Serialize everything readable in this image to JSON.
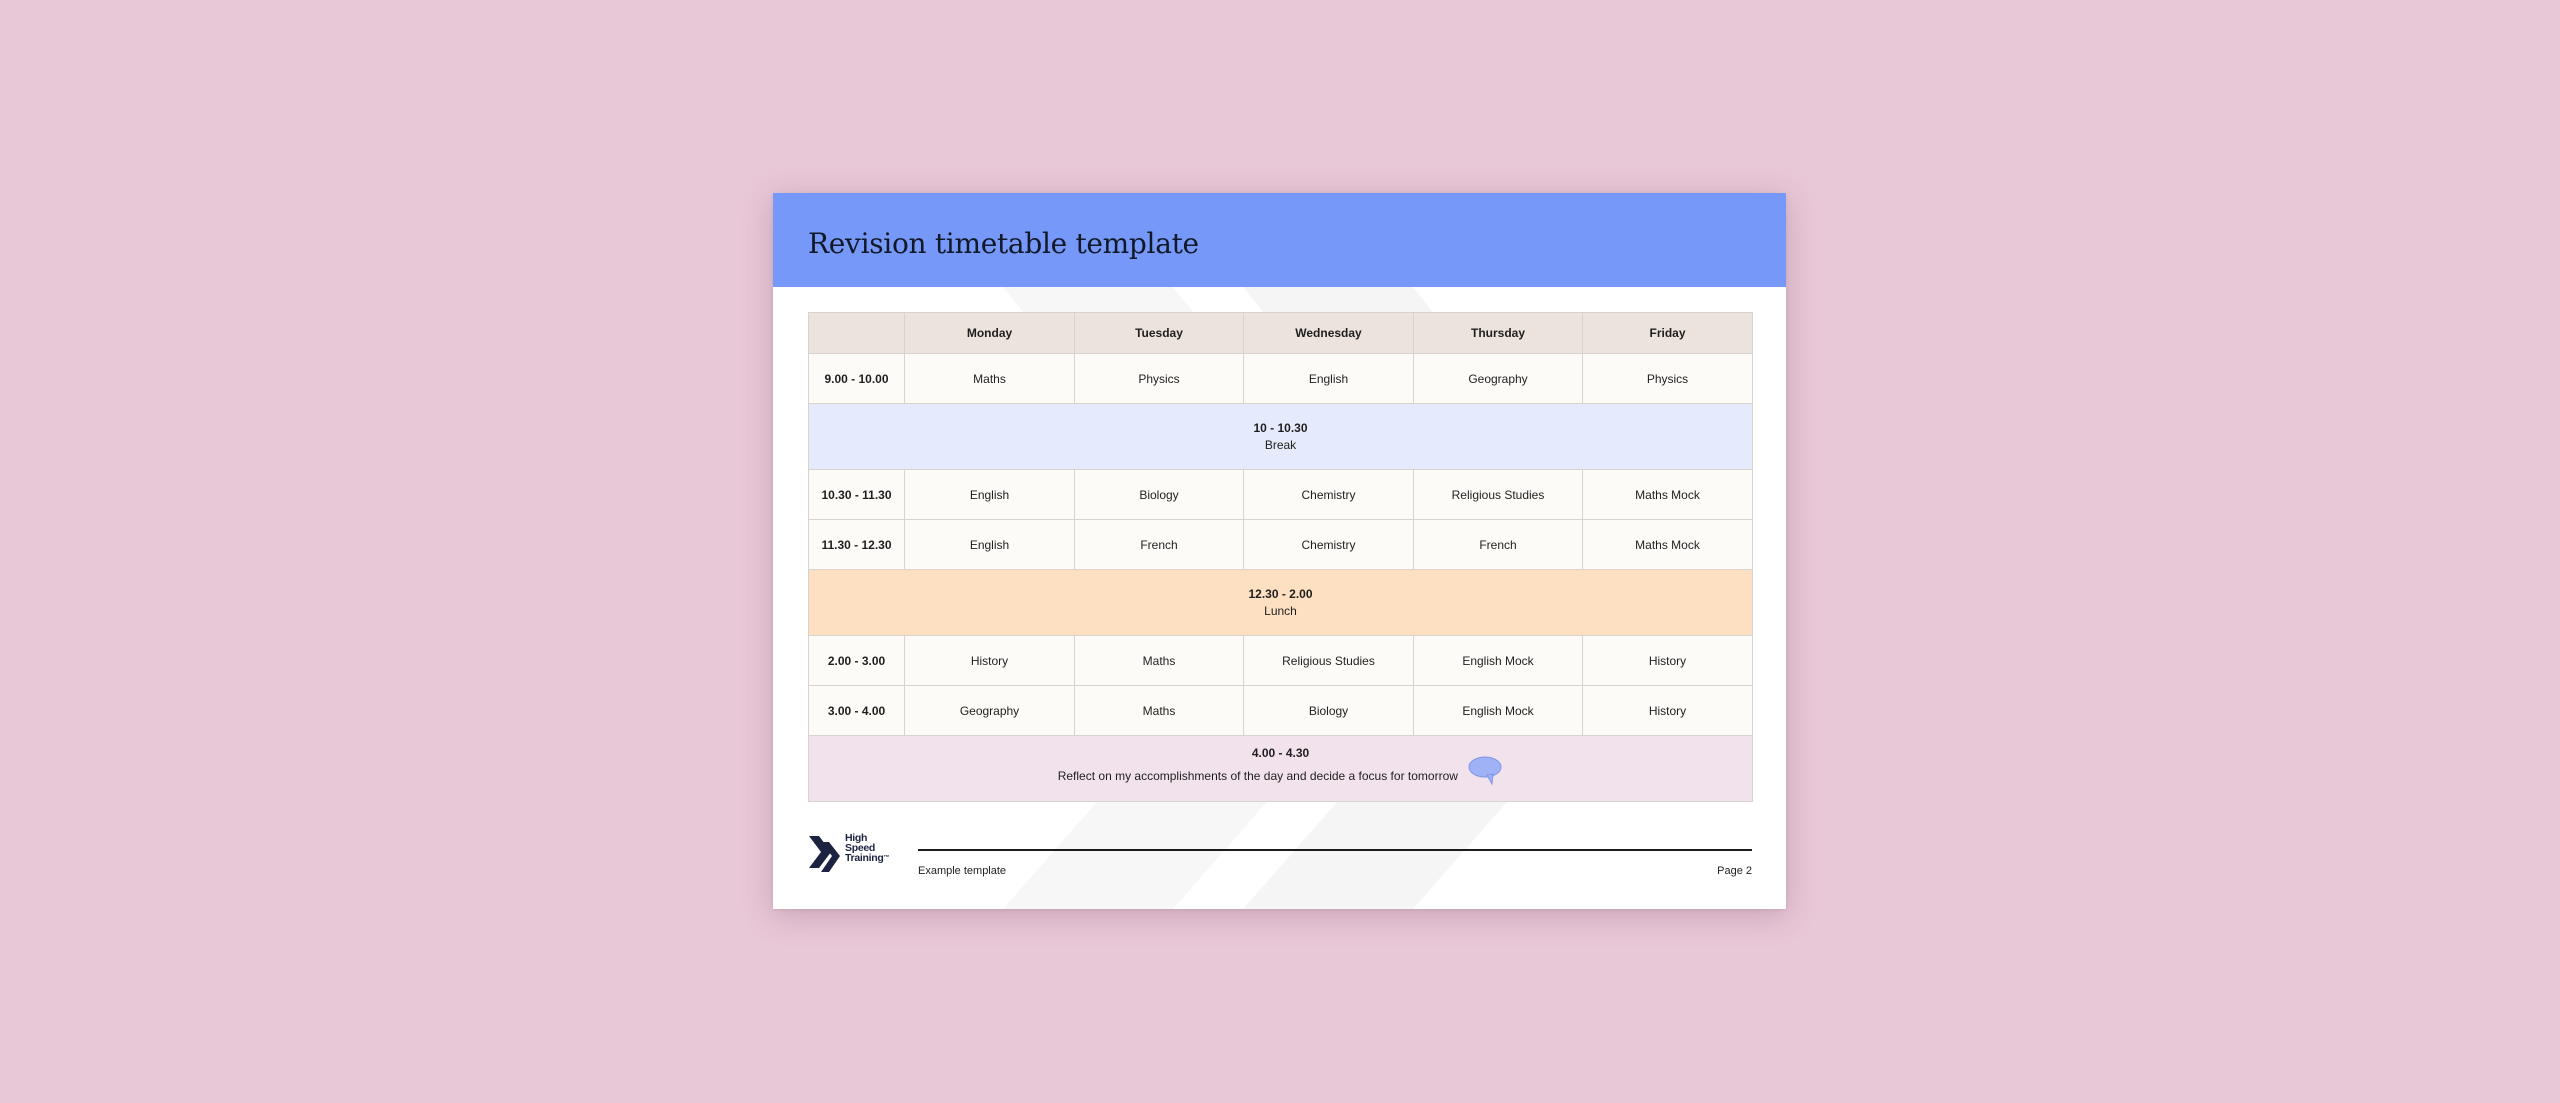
{
  "document": {
    "title": "Revision timetable template",
    "colors": {
      "background": "#e8c7d7",
      "header": "#7698f8",
      "table_header": "#ece3dc",
      "break": "#e5ebfd",
      "lunch": "#fde0c2",
      "reflect": "#f1e2ec"
    }
  },
  "timetable": {
    "days": [
      "Monday",
      "Tuesday",
      "Wednesday",
      "Thursday",
      "Friday"
    ],
    "rows": [
      {
        "time": "9.00 - 10.00",
        "subjects": [
          "Maths",
          "Physics",
          "English",
          "Geography",
          "Physics"
        ]
      },
      {
        "time": "10.30 - 11.30",
        "subjects": [
          "English",
          "Biology",
          "Chemistry",
          "Religious Studies",
          "Maths Mock"
        ]
      },
      {
        "time": "11.30 - 12.30",
        "subjects": [
          "English",
          "French",
          "Chemistry",
          "French",
          "Maths Mock"
        ]
      },
      {
        "time": "2.00 - 3.00",
        "subjects": [
          "History",
          "Maths",
          "Religious Studies",
          "English Mock",
          "History"
        ]
      },
      {
        "time": "3.00 - 4.00",
        "subjects": [
          "Geography",
          "Maths",
          "Biology",
          "English Mock",
          "History"
        ]
      }
    ],
    "breaks": {
      "morning": {
        "time": "10 - 10.30",
        "label": "Break"
      },
      "lunch": {
        "time": "12.30 - 2.00",
        "label": "Lunch"
      },
      "reflect": {
        "time": "4.00 - 4.30",
        "label": "Reflect on my accomplishments of the day and decide a focus for tomorrow",
        "icon": "speech-bubble-icon"
      }
    }
  },
  "footer": {
    "logo": {
      "line1": "High",
      "line2": "Speed",
      "line3": "Training",
      "mark": "™"
    },
    "left": "Example template",
    "right": "Page 2"
  }
}
